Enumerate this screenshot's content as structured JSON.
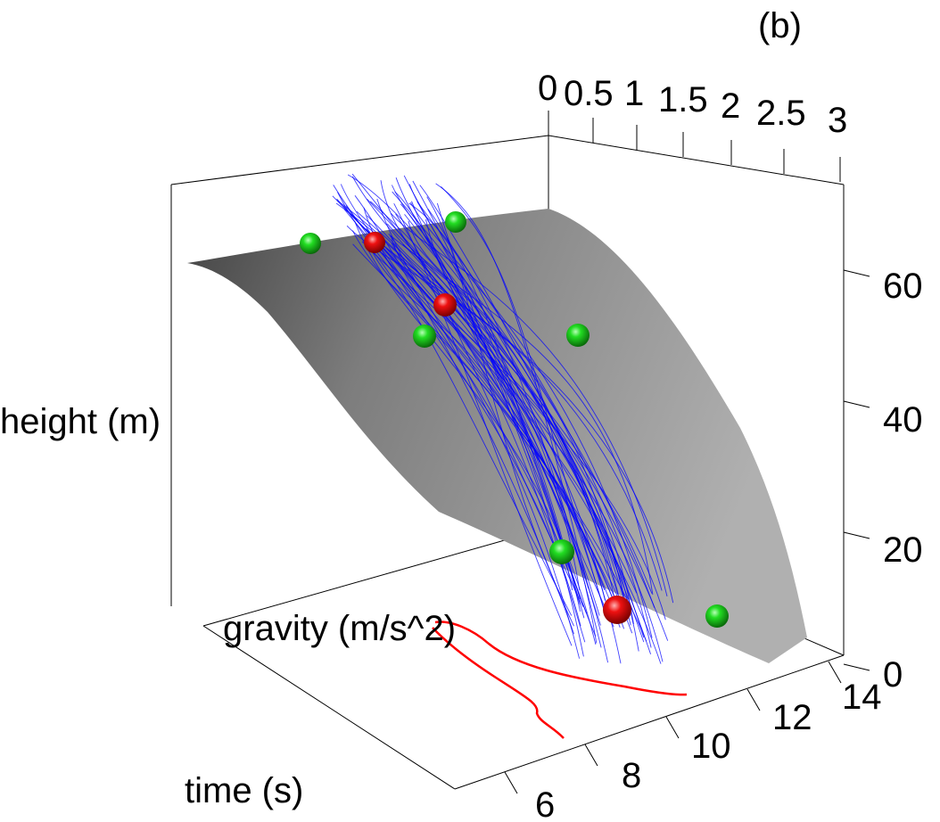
{
  "panel_label": "(b)",
  "colors": {
    "surface_light": "#b4b4b4",
    "surface_dark": "#5a5a5a",
    "trajectory": "#0000ff",
    "observed_point": "#22cc22",
    "highlight_point": "#ee0000",
    "projection_curve": "#ff0000"
  },
  "chart_data": {
    "type": "surface3d",
    "axes": {
      "x": {
        "label": "time (s)",
        "ticks": [
          "6",
          "8",
          "10",
          "12",
          "14"
        ],
        "range": [
          5,
          14.5
        ]
      },
      "y": {
        "label": "gravity (m/s^2)",
        "ticks": [
          "0",
          "0.5",
          "1",
          "1.5",
          "2",
          "2.5",
          "3"
        ],
        "range": [
          0,
          3
        ]
      },
      "z": {
        "label": "height (m)",
        "ticks": [
          "0",
          "20",
          "40",
          "60"
        ],
        "range": [
          0,
          70
        ]
      }
    },
    "surface": {
      "description_type": "decreasing quadratic in time"
    },
    "trajectories": {
      "count": 60
    },
    "points": [
      {
        "color": "green"
      },
      {
        "color": "green"
      },
      {
        "color": "green"
      },
      {
        "color": "green"
      },
      {
        "color": "green"
      },
      {
        "color": "green"
      },
      {
        "color": "red"
      },
      {
        "color": "red"
      },
      {
        "color": "red"
      }
    ]
  }
}
